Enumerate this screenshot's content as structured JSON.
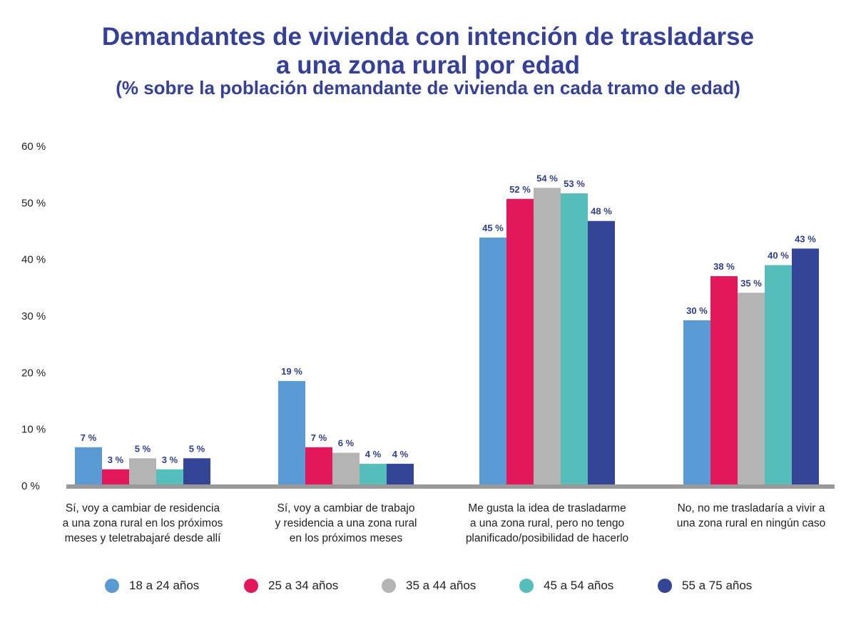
{
  "chart_data": {
    "type": "bar",
    "title": "Demandantes de vivienda con intención de trasladarse a una zona rural por edad",
    "subtitle": "(% sobre la población demandante de vivienda en cada tramo de edad)",
    "categories": [
      "Sí, voy a cambiar de residencia a una zona rural en los próximos meses y teletrabajaré desde allí",
      "Sí, voy a cambiar de trabajo y residencia a una zona rural en los próximos meses",
      "Me gusta la idea de trasladarme a una zona rural, pero no tengo planificado/posibilidad de hacerlo",
      "No, no me trasladaría a vivir a una zona rural en ningún caso"
    ],
    "category_lines": [
      [
        "Sí, voy a cambiar de residencia",
        "a una zona rural en los próximos",
        "meses y teletrabajaré desde allí"
      ],
      [
        "Sí, voy a cambiar de trabajo",
        "y residencia a una zona rural",
        "en los próximos meses"
      ],
      [
        "Me gusta la idea de trasladarme",
        "a una zona rural, pero no tengo",
        "planificado/posibilidad de hacerlo"
      ],
      [
        "No, no me trasladaría a vivir a",
        "una zona rural en ningún caso"
      ]
    ],
    "series": [
      {
        "name": "18 a 24 años",
        "color": "#5b9bd5",
        "values": [
          7,
          19,
          45,
          30
        ]
      },
      {
        "name": "25 a 34 años",
        "color": "#e2185b",
        "values": [
          3,
          7,
          52,
          38
        ]
      },
      {
        "name": "35 a 44 años",
        "color": "#b4b4b4",
        "values": [
          5,
          6,
          54,
          35
        ]
      },
      {
        "name": "45 a 54 años",
        "color": "#55bdba",
        "values": [
          3,
          4,
          53,
          40
        ]
      },
      {
        "name": "55 a 75 años",
        "color": "#344496",
        "values": [
          5,
          4,
          48,
          43
        ]
      }
    ],
    "value_suffix": " %",
    "ylim": [
      0,
      60
    ],
    "yticks": [
      "0 %",
      "10 %",
      "20 %",
      "30 %",
      "40 %",
      "50 %",
      "60 %"
    ],
    "grid": false,
    "legend": "bottom"
  }
}
